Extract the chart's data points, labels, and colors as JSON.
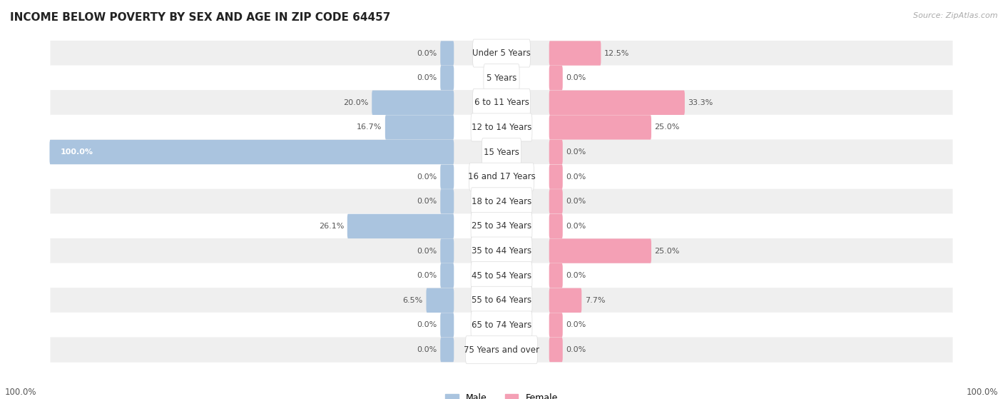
{
  "title": "INCOME BELOW POVERTY BY SEX AND AGE IN ZIP CODE 64457",
  "source": "Source: ZipAtlas.com",
  "categories": [
    "Under 5 Years",
    "5 Years",
    "6 to 11 Years",
    "12 to 14 Years",
    "15 Years",
    "16 and 17 Years",
    "18 to 24 Years",
    "25 to 34 Years",
    "35 to 44 Years",
    "45 to 54 Years",
    "55 to 64 Years",
    "65 to 74 Years",
    "75 Years and over"
  ],
  "male_values": [
    0.0,
    0.0,
    20.0,
    16.7,
    100.0,
    0.0,
    0.0,
    26.1,
    0.0,
    0.0,
    6.5,
    0.0,
    0.0
  ],
  "female_values": [
    12.5,
    0.0,
    33.3,
    25.0,
    0.0,
    0.0,
    0.0,
    0.0,
    25.0,
    0.0,
    7.7,
    0.0,
    0.0
  ],
  "male_color": "#aac4df",
  "female_color": "#f4a0b5",
  "male_label": "Male",
  "female_label": "Female",
  "max_value": 100.0,
  "bg_color": "#ffffff",
  "row_bg_even": "#efefef",
  "row_bg_odd": "#ffffff",
  "title_fontsize": 11,
  "label_fontsize": 8.5,
  "value_fontsize": 8,
  "source_fontsize": 8
}
